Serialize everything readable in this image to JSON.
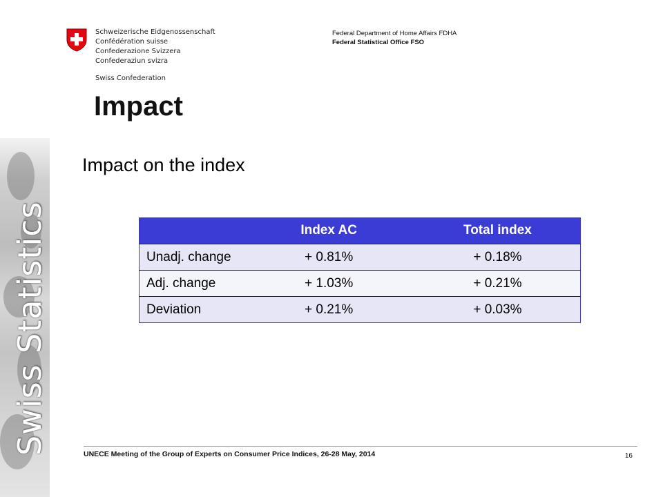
{
  "header": {
    "confederation_names": [
      "Schweizerische Eidgenossenschaft",
      "Confédération suisse",
      "Confederazione Svizzera",
      "Confederaziun svizra"
    ],
    "swiss_confederation": "Swiss Confederation",
    "department": "Federal Department of Home Affairs FDHA",
    "office": "Federal Statistical Office FSO"
  },
  "slide": {
    "title": "Impact",
    "subtitle": "Impact on the index"
  },
  "table": {
    "columns": [
      "",
      "Index AC",
      "Total index"
    ],
    "rows": [
      [
        "Unadj. change",
        "+ 0.81%",
        "+ 0.18%"
      ],
      [
        "Adj. change",
        "+ 1.03%",
        "+ 0.21%"
      ],
      [
        "Deviation",
        "+ 0.21%",
        "+ 0.03%"
      ]
    ]
  },
  "sidebar": {
    "brand_text": "Swiss Statistics"
  },
  "footer": {
    "text": "UNECE Meeting of the Group of Experts on Consumer Price Indices, 26-28 May, 2014",
    "page_number": "16"
  },
  "colors": {
    "table_header": "#3b3bd6",
    "swiss_red": "#e30613"
  },
  "icons": [
    "swiss-crest-icon"
  ]
}
